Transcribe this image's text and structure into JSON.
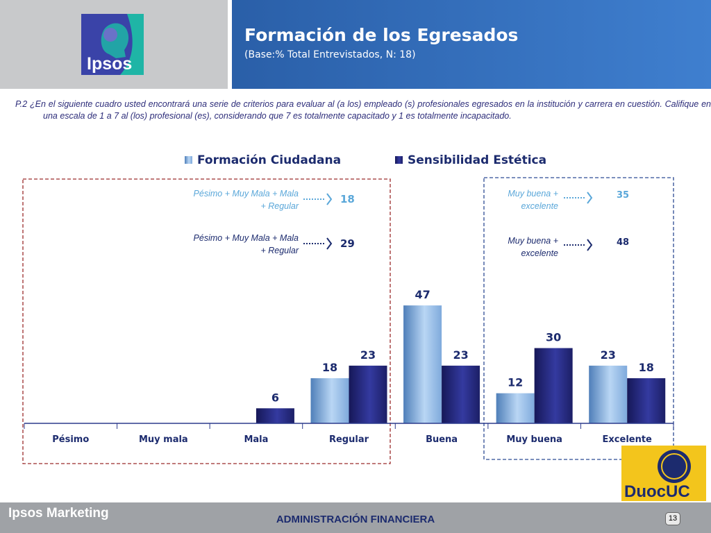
{
  "header": {
    "logo_text": "Ipsos",
    "title": "Formación de los Egresados",
    "subtitle": "(Base:% Total Entrevistados, N: 18)"
  },
  "question": "P.2 ¿En el siguiente cuadro usted encontrará una serie de criterios para evaluar al (a los) empleado (s) profesionales egresados en la institución y carrera en cuestión. Califique en una escala de 1 a 7 al (los) profesional (es), considerando que 7 es totalmente capacitado y 1 es totalmente incapacitado.",
  "colors": {
    "series_light": "#8fb8e6",
    "series_dark": "#23266f",
    "label_light": "#5aa7d9",
    "text_navy": "#1c2b6e",
    "box_left": "#9b2b2b",
    "box_right": "#2c4a93"
  },
  "chart_data": {
    "type": "bar",
    "categories": [
      "Pésimo",
      "Muy mala",
      "Mala",
      "Regular",
      "Buena",
      "Muy buena",
      "Excelente"
    ],
    "series": [
      {
        "name": "Formación Ciudadana",
        "values": [
          null,
          null,
          null,
          18,
          47,
          12,
          23
        ]
      },
      {
        "name": "Sensibilidad Estética",
        "values": [
          null,
          null,
          6,
          23,
          23,
          30,
          18
        ]
      }
    ],
    "ylim": [
      0,
      55
    ],
    "grid": false,
    "legend": "top-center",
    "title": "",
    "xlabel": "",
    "ylabel": "",
    "annotations": {
      "negative": [
        {
          "label": "Pésimo + Muy Mala + Mala + Regular",
          "value": 18,
          "series": 0
        },
        {
          "label": "Pésimo + Muy Mala + Mala + Regular",
          "value": 29,
          "series": 1
        }
      ],
      "positive": [
        {
          "label": "Muy buena + excelente",
          "value": 35,
          "series": 0
        },
        {
          "label": "Muy buena + excelente",
          "value": 48,
          "series": 1
        }
      ]
    }
  },
  "footer": {
    "brand": "Ipsos Marketing",
    "center": "ADMINISTRACIÓN FINANCIERA",
    "page": "13",
    "duoc_text": "DuocUC"
  }
}
